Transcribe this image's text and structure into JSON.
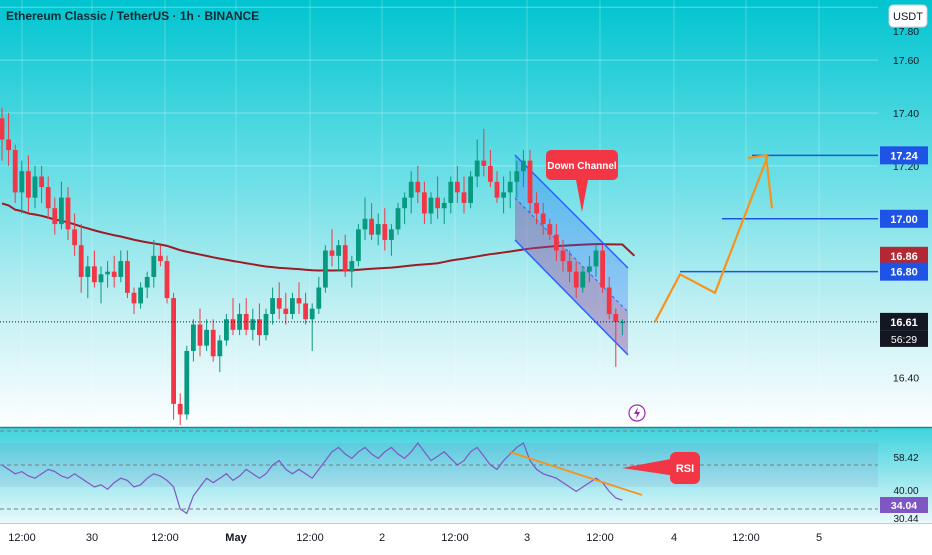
{
  "header": {
    "title": "Ethereum Classic / TetherUS · 1h · BINANCE",
    "currency": "USDT"
  },
  "colors": {
    "up": "#089981",
    "down": "#f23645",
    "ma": "#9b1c27",
    "level_line": "#1e53e5",
    "arrow": "#f7931a",
    "rsi_line": "#7e57c2",
    "rsi_trend": "#f7931a",
    "callout": "#f23645",
    "channel": "#2962ff"
  },
  "chart_data": {
    "type": "candlestick",
    "symbol": "Ethereum Classic / TetherUS",
    "interval": "1h",
    "exchange": "BINANCE",
    "ylim": [
      16.22,
      17.82
    ],
    "y_ticks": [
      16.4,
      17.2,
      17.4,
      17.6,
      17.8
    ],
    "x_ticks": [
      "12:00",
      "30",
      "12:00",
      "May",
      "12:00",
      "2",
      "12:00",
      "3",
      "12:00",
      "4",
      "12:00",
      "5"
    ],
    "candles": [
      [
        17.38,
        17.42,
        17.22,
        17.3
      ],
      [
        17.3,
        17.4,
        17.2,
        17.26
      ],
      [
        17.26,
        17.28,
        17.06,
        17.1
      ],
      [
        17.1,
        17.22,
        17.02,
        17.18
      ],
      [
        17.18,
        17.24,
        17.02,
        17.08
      ],
      [
        17.08,
        17.2,
        17.04,
        17.16
      ],
      [
        17.16,
        17.2,
        17.06,
        17.12
      ],
      [
        17.12,
        17.16,
        17.0,
        17.04
      ],
      [
        17.04,
        17.08,
        16.94,
        16.98
      ],
      [
        16.98,
        17.14,
        16.96,
        17.08
      ],
      [
        17.08,
        17.12,
        16.92,
        16.96
      ],
      [
        16.96,
        17.02,
        16.86,
        16.9
      ],
      [
        16.9,
        16.98,
        16.72,
        16.78
      ],
      [
        16.78,
        16.86,
        16.7,
        16.82
      ],
      [
        16.82,
        16.88,
        16.74,
        16.76
      ],
      [
        16.76,
        16.82,
        16.68,
        16.79
      ],
      [
        16.79,
        16.84,
        16.74,
        16.8
      ],
      [
        16.8,
        16.86,
        16.74,
        16.78
      ],
      [
        16.78,
        16.88,
        16.76,
        16.84
      ],
      [
        16.84,
        16.88,
        16.7,
        16.72
      ],
      [
        16.72,
        16.74,
        16.64,
        16.68
      ],
      [
        16.68,
        16.76,
        16.66,
        16.74
      ],
      [
        16.74,
        16.8,
        16.7,
        16.78
      ],
      [
        16.78,
        16.92,
        16.74,
        16.86
      ],
      [
        16.86,
        16.9,
        16.82,
        16.84
      ],
      [
        16.84,
        16.86,
        16.68,
        16.7
      ],
      [
        16.7,
        16.72,
        16.24,
        16.3
      ],
      [
        16.3,
        16.34,
        16.22,
        16.26
      ],
      [
        16.26,
        16.52,
        16.24,
        16.5
      ],
      [
        16.5,
        16.62,
        16.46,
        16.6
      ],
      [
        16.6,
        16.66,
        16.48,
        16.52
      ],
      [
        16.52,
        16.62,
        16.5,
        16.58
      ],
      [
        16.58,
        16.62,
        16.46,
        16.48
      ],
      [
        16.48,
        16.56,
        16.42,
        16.54
      ],
      [
        16.54,
        16.64,
        16.52,
        16.62
      ],
      [
        16.62,
        16.7,
        16.56,
        16.58
      ],
      [
        16.58,
        16.68,
        16.56,
        16.64
      ],
      [
        16.64,
        16.7,
        16.56,
        16.58
      ],
      [
        16.58,
        16.66,
        16.54,
        16.62
      ],
      [
        16.62,
        16.68,
        16.52,
        16.56
      ],
      [
        16.56,
        16.66,
        16.54,
        16.64
      ],
      [
        16.64,
        16.74,
        16.6,
        16.7
      ],
      [
        16.7,
        16.76,
        16.62,
        16.66
      ],
      [
        16.66,
        16.72,
        16.6,
        16.64
      ],
      [
        16.64,
        16.72,
        16.62,
        16.7
      ],
      [
        16.7,
        16.76,
        16.64,
        16.68
      ],
      [
        16.68,
        16.72,
        16.6,
        16.62
      ],
      [
        16.62,
        16.68,
        16.5,
        16.66
      ],
      [
        16.66,
        16.78,
        16.64,
        16.74
      ],
      [
        16.74,
        16.9,
        16.72,
        16.88
      ],
      [
        16.88,
        16.96,
        16.82,
        16.86
      ],
      [
        16.86,
        16.92,
        16.8,
        16.9
      ],
      [
        16.9,
        16.94,
        16.78,
        16.8
      ],
      [
        16.8,
        16.86,
        16.74,
        16.84
      ],
      [
        16.84,
        16.98,
        16.82,
        16.96
      ],
      [
        16.96,
        17.08,
        16.92,
        17.0
      ],
      [
        17.0,
        17.06,
        16.92,
        16.94
      ],
      [
        16.94,
        17.02,
        16.9,
        16.98
      ],
      [
        16.98,
        17.04,
        16.88,
        16.92
      ],
      [
        16.92,
        16.98,
        16.86,
        16.96
      ],
      [
        16.96,
        17.06,
        16.94,
        17.04
      ],
      [
        17.04,
        17.1,
        16.98,
        17.08
      ],
      [
        17.08,
        17.18,
        17.02,
        17.14
      ],
      [
        17.14,
        17.2,
        17.06,
        17.1
      ],
      [
        17.1,
        17.14,
        16.98,
        17.02
      ],
      [
        17.02,
        17.1,
        16.98,
        17.08
      ],
      [
        17.08,
        17.16,
        17.0,
        17.04
      ],
      [
        17.04,
        17.08,
        16.98,
        17.06
      ],
      [
        17.06,
        17.16,
        17.02,
        17.14
      ],
      [
        17.14,
        17.2,
        17.06,
        17.1
      ],
      [
        17.1,
        17.16,
        17.02,
        17.06
      ],
      [
        17.06,
        17.18,
        17.04,
        17.16
      ],
      [
        17.16,
        17.3,
        17.12,
        17.22
      ],
      [
        17.22,
        17.34,
        17.16,
        17.2
      ],
      [
        17.2,
        17.26,
        17.12,
        17.14
      ],
      [
        17.14,
        17.18,
        17.06,
        17.08
      ],
      [
        17.08,
        17.16,
        17.02,
        17.1
      ],
      [
        17.1,
        17.18,
        17.04,
        17.14
      ],
      [
        17.14,
        17.22,
        17.08,
        17.18
      ],
      [
        17.18,
        17.26,
        17.12,
        17.22
      ],
      [
        17.22,
        17.26,
        17.02,
        17.06
      ],
      [
        17.06,
        17.1,
        16.98,
        17.02
      ],
      [
        17.02,
        17.06,
        16.94,
        16.98
      ],
      [
        16.98,
        17.0,
        16.92,
        16.94
      ],
      [
        16.94,
        16.98,
        16.84,
        16.88
      ],
      [
        16.88,
        16.92,
        16.8,
        16.84
      ],
      [
        16.84,
        16.88,
        16.76,
        16.8
      ],
      [
        16.8,
        16.84,
        16.7,
        16.74
      ],
      [
        16.74,
        16.82,
        16.72,
        16.8
      ],
      [
        16.8,
        16.86,
        16.76,
        16.82
      ],
      [
        16.82,
        16.9,
        16.78,
        16.88
      ],
      [
        16.88,
        16.9,
        16.72,
        16.74
      ],
      [
        16.74,
        16.78,
        16.62,
        16.64
      ],
      [
        16.64,
        16.66,
        16.44,
        16.61
      ],
      [
        16.61,
        16.62,
        16.56,
        16.61
      ]
    ],
    "annotations": {
      "down_channel_label": "Down Channel",
      "rsi_label": "RSI"
    }
  },
  "price_labels": {
    "l1724": {
      "text": "17.24",
      "value": 17.24
    },
    "l1700": {
      "text": "17.00",
      "value": 17.0
    },
    "l1686": {
      "text": "16.86",
      "value": 16.86
    },
    "l1680": {
      "text": "16.80",
      "value": 16.8
    },
    "l1661": {
      "text": "16.61",
      "value": 16.61
    },
    "countdown": "56:29"
  },
  "rsi": {
    "ticks": [
      "58.42",
      "40.00",
      "30.44"
    ],
    "current": "34.04",
    "values": [
      50,
      48,
      46,
      47,
      45,
      44,
      46,
      48,
      47,
      45,
      44,
      46,
      44,
      42,
      40,
      41,
      39,
      42,
      44,
      43,
      40,
      41,
      44,
      46,
      45,
      43,
      40,
      30,
      28,
      36,
      40,
      44,
      42,
      44,
      46,
      43,
      45,
      48,
      46,
      44,
      46,
      50,
      52,
      48,
      46,
      48,
      46,
      44,
      48,
      52,
      56,
      58,
      55,
      53,
      56,
      58,
      55,
      53,
      56,
      58,
      55,
      53,
      56,
      60,
      56,
      52,
      54,
      56,
      53,
      50,
      52,
      56,
      58,
      54,
      50,
      48,
      52,
      55,
      58,
      60,
      52,
      48,
      46,
      45,
      44,
      42,
      40,
      38,
      40,
      42,
      44,
      42,
      38,
      35,
      34
    ]
  }
}
